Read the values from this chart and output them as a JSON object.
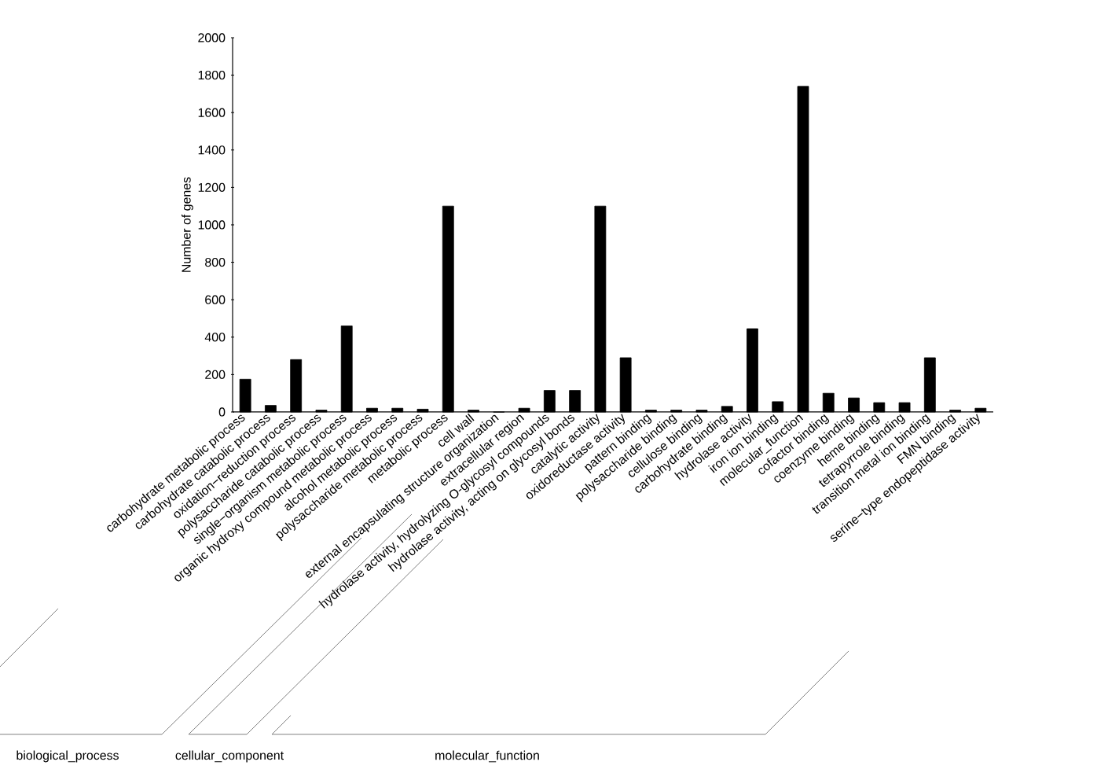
{
  "chart_data": {
    "type": "bar",
    "ylabel": "Number of genes",
    "categories": [
      "carbohydrate metabolic process",
      "carbohydrate catabolic process",
      "oxidation−reduction process",
      "polysaccharide catabolic process",
      "single−organism metabolic process",
      "organic hydroxy compound metabolic process",
      "alcohol metabolic process",
      "polysaccharide metabolic process",
      "metabolic process",
      "cell wall",
      "external encapsulating structure organization",
      "extracellular region",
      "hydrolase activity, hydrolyzing O-glycosyl compounds",
      "hydrolase activity, acting on glycosyl bonds",
      "catalytic activity",
      "oxidoreductase activity",
      "pattern binding",
      "polysaccharide binding",
      "cellulose binding",
      "carbohydrate binding",
      "hydrolase activity",
      "iron ion binding",
      "molecular_function",
      "cofactor binding",
      "coenzyme binding",
      "heme binding",
      "tetrapyrrole binding",
      "transition metal ion binding",
      "FMN binding",
      "serine−type endopeptidase activity"
    ],
    "values": [
      175,
      35,
      280,
      10,
      460,
      20,
      20,
      15,
      1100,
      10,
      0,
      20,
      115,
      115,
      1100,
      290,
      10,
      10,
      10,
      30,
      445,
      55,
      1740,
      100,
      75,
      50,
      50,
      290,
      10,
      20
    ],
    "color": "#000000",
    "ylim": [
      0,
      2000
    ],
    "yticks": [
      0,
      200,
      400,
      600,
      800,
      1000,
      1200,
      1400,
      1600,
      1800,
      2000
    ],
    "annotations": [
      "biological_process",
      "cellular_component",
      "molecular_function"
    ]
  }
}
